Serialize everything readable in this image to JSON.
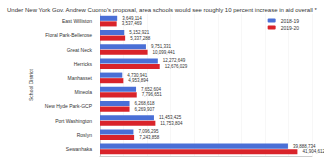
{
  "chart_data": {
    "type": "bar",
    "orientation": "horizontal",
    "title": "Under New York Gov. Andrew Cuomo's proposal, area schools would see roughly 10 percent increase in aid overall *",
    "y_label": "School District",
    "categories": [
      "East Williston",
      "Floral Park-Bellerose",
      "Great Neck",
      "Herricks",
      "Manhasset",
      "Mineola",
      "New Hyde Park-GCP",
      "Port Washington",
      "Roslyn",
      "Sewanhaka"
    ],
    "series": [
      {
        "name": "2018-19",
        "color": "#4a6fd6",
        "values": [
          3649114,
          5152921,
          9751331,
          12272649,
          4730941,
          7652604,
          6268618,
          11453425,
          7096295,
          39888734
        ],
        "value_labels": [
          "3,649,114",
          "5,152,921",
          "9,751,331",
          "12,272,649",
          "4,730,941",
          "7,652,604",
          "6,268,618",
          "11,453,425",
          "7,096,295",
          "39,888,734"
        ]
      },
      {
        "name": "2019-20",
        "color": "#d9232a",
        "values": [
          3537469,
          5337288,
          10099441,
          12676029,
          4953894,
          7796651,
          6269907,
          11753804,
          7243858,
          41904612
        ],
        "value_labels": [
          "3,537,469",
          "5,337,288",
          "10,099,441",
          "12,676,029",
          "4,953,894",
          "7,796,651",
          "6,269,907",
          "11,753,804",
          "7,243,858",
          "41,904,612"
        ]
      }
    ],
    "xlim": [
      0,
      45000000
    ],
    "xticks": [
      0,
      5000000,
      10000000,
      15000000,
      20000000,
      25000000,
      30000000,
      35000000,
      40000000,
      45000000
    ],
    "grid": true,
    "legend": "top-right",
    "data_labels": true,
    "tick_labels": "y"
  }
}
